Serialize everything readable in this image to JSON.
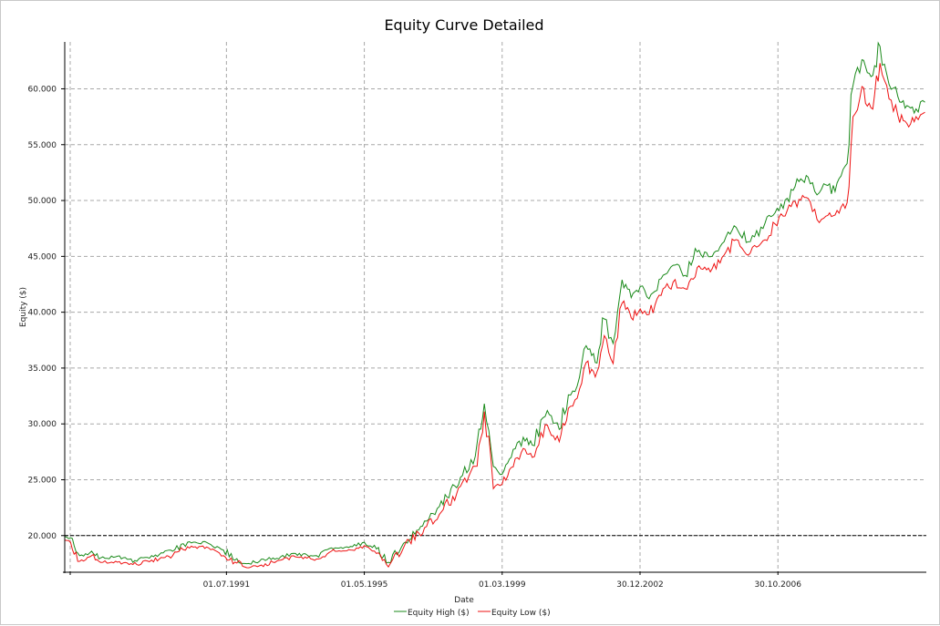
{
  "chart_data": {
    "type": "line",
    "title": "Equity Curve Detailed",
    "xlabel": "Date",
    "ylabel": "Equity ($)",
    "x_type": "date",
    "xlim": [
      "1987-01-01",
      "2010-12-15"
    ],
    "ylim": [
      16800,
      64200
    ],
    "yticks": [
      20000,
      25000,
      30000,
      35000,
      40000,
      45000,
      50000,
      55000,
      60000
    ],
    "ytick_labels": [
      "20.000",
      "25.000",
      "30.000",
      "35.000",
      "40.000",
      "45.000",
      "50.000",
      "55.000",
      "60.000"
    ],
    "xticks": [
      "1991-07-01",
      "1995-05-01",
      "1999-03-01",
      "2002-12-30",
      "2006-10-30"
    ],
    "xtick_labels": [
      "01.07.1991",
      "01.05.1995",
      "01.03.1999",
      "30.12.2002",
      "30.10.2006"
    ],
    "grid": true,
    "grid_style": "dashed",
    "reference_line": {
      "y": 20000,
      "style": "dashed",
      "color": "#000000"
    },
    "legend_position": "bottom-center",
    "series": [
      {
        "name": "Equity High ($)",
        "color": "#1a8a1a",
        "x": [
          "1987-01-01",
          "1987-03-01",
          "1987-06-01",
          "1987-10-01",
          "1988-01-01",
          "1988-06-01",
          "1989-01-01",
          "1989-06-01",
          "1990-01-01",
          "1990-06-01",
          "1991-01-01",
          "1991-06-01",
          "1992-01-01",
          "1992-06-01",
          "1993-01-01",
          "1993-06-01",
          "1994-01-01",
          "1994-06-01",
          "1995-01-01",
          "1995-05-01",
          "1995-09-01",
          "1996-01-01",
          "1996-06-01",
          "1997-01-01",
          "1997-06-01",
          "1998-01-01",
          "1998-06-01",
          "1998-09-01",
          "1998-12-01",
          "1999-03-01",
          "1999-06-01",
          "1999-10-01",
          "2000-01-01",
          "2000-06-01",
          "2000-10-01",
          "2001-01-01",
          "2001-04-01",
          "2001-07-01",
          "2001-10-01",
          "2002-01-01",
          "2002-04-01",
          "2002-07-01",
          "2002-10-01",
          "2003-01-01",
          "2003-04-01",
          "2003-08-01",
          "2003-12-01",
          "2004-04-01",
          "2004-08-01",
          "2005-01-01",
          "2005-05-01",
          "2005-09-01",
          "2006-01-01",
          "2006-06-01",
          "2006-10-01",
          "2007-02-01",
          "2007-06-01",
          "2007-09-01",
          "2007-12-01",
          "2008-03-01",
          "2008-06-01",
          "2008-08-01",
          "2008-10-01",
          "2008-12-01",
          "2009-03-01",
          "2009-06-01",
          "2009-09-01",
          "2009-12-01",
          "2010-03-01",
          "2010-06-01",
          "2010-09-01",
          "2010-12-01"
        ],
        "values": [
          19900,
          19800,
          18200,
          18600,
          18000,
          18100,
          17700,
          18200,
          18600,
          19400,
          19300,
          18700,
          17500,
          17700,
          18100,
          18400,
          18200,
          18900,
          19000,
          19400,
          18800,
          17600,
          19300,
          21300,
          22600,
          25200,
          27100,
          31800,
          26200,
          25500,
          27000,
          28800,
          28100,
          31200,
          29500,
          32600,
          33400,
          37000,
          35500,
          39400,
          37200,
          42900,
          41300,
          42300,
          41200,
          43000,
          44200,
          43300,
          45400,
          45000,
          46300,
          47600,
          46300,
          47500,
          48900,
          50200,
          51700,
          52100,
          50500,
          51400,
          50800,
          52200,
          53300,
          60300,
          62600,
          61100,
          63800,
          60400,
          59300,
          58500,
          58200,
          58800
        ]
      },
      {
        "name": "Equity Low ($)",
        "color": "#ee1111",
        "x": [
          "1987-01-01",
          "1987-03-01",
          "1987-06-01",
          "1987-10-01",
          "1988-01-01",
          "1988-06-01",
          "1989-01-01",
          "1989-06-01",
          "1990-01-01",
          "1990-06-01",
          "1991-01-01",
          "1991-06-01",
          "1992-01-01",
          "1992-06-01",
          "1993-01-01",
          "1993-06-01",
          "1994-01-01",
          "1994-06-01",
          "1995-01-01",
          "1995-05-01",
          "1995-09-01",
          "1996-01-01",
          "1996-06-01",
          "1997-01-01",
          "1997-06-01",
          "1998-01-01",
          "1998-06-01",
          "1998-09-01",
          "1998-12-01",
          "1999-03-01",
          "1999-06-01",
          "1999-10-01",
          "2000-01-01",
          "2000-06-01",
          "2000-10-01",
          "2001-01-01",
          "2001-04-01",
          "2001-07-01",
          "2001-10-01",
          "2002-01-01",
          "2002-04-01",
          "2002-07-01",
          "2002-10-01",
          "2003-01-01",
          "2003-04-01",
          "2003-08-01",
          "2003-12-01",
          "2004-04-01",
          "2004-08-01",
          "2005-01-01",
          "2005-05-01",
          "2005-09-01",
          "2006-01-01",
          "2006-06-01",
          "2006-10-01",
          "2007-02-01",
          "2007-06-01",
          "2007-09-01",
          "2007-12-01",
          "2008-03-01",
          "2008-06-01",
          "2008-08-01",
          "2008-10-01",
          "2008-12-01",
          "2009-03-01",
          "2009-06-01",
          "2009-09-01",
          "2009-12-01",
          "2010-03-01",
          "2010-06-01",
          "2010-09-01",
          "2010-12-01"
        ],
        "values": [
          19600,
          19400,
          17700,
          18200,
          17600,
          17700,
          17400,
          17800,
          18200,
          19000,
          18900,
          18200,
          17200,
          17300,
          17800,
          18100,
          17900,
          18600,
          18700,
          19100,
          18400,
          17200,
          18900,
          20700,
          21900,
          24400,
          26200,
          31100,
          24200,
          24600,
          26100,
          27800,
          27000,
          29900,
          28400,
          31400,
          32300,
          35500,
          34200,
          37900,
          35400,
          40800,
          39500,
          40300,
          39800,
          41500,
          42700,
          42100,
          44000,
          43900,
          45100,
          46500,
          45100,
          46400,
          47900,
          49100,
          50100,
          50200,
          48300,
          48600,
          48700,
          49400,
          49800,
          57500,
          60200,
          58300,
          62300,
          59100,
          57600,
          56900,
          57500,
          57900
        ]
      }
    ]
  }
}
